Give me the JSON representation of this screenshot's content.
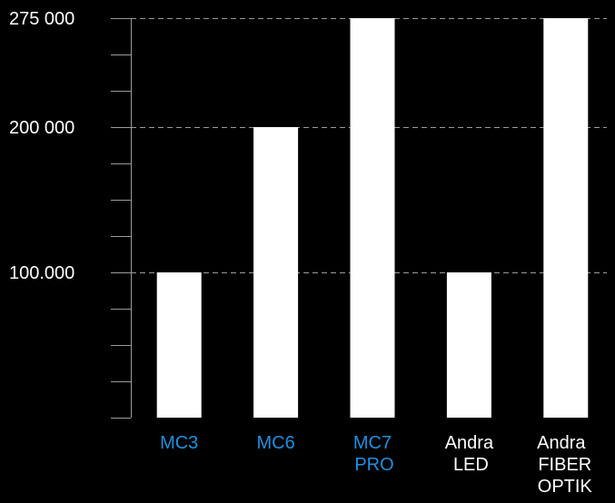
{
  "chart_data": {
    "type": "bar",
    "categories": [
      {
        "lines": [
          "MC3"
        ],
        "color": "#1e90e0"
      },
      {
        "lines": [
          "MC6"
        ],
        "color": "#1e90e0"
      },
      {
        "lines": [
          "MC7",
          "PRO"
        ],
        "color": "#1e90e0"
      },
      {
        "lines": [
          "Andra",
          "LED"
        ],
        "color": "#ffffff"
      },
      {
        "lines": [
          "Andra",
          "FIBER",
          "OPTIK"
        ],
        "color": "#ffffff"
      }
    ],
    "values": [
      100000,
      200000,
      275000,
      100000,
      275000
    ],
    "ylim": [
      0,
      275000
    ],
    "y_tick_labels": [
      {
        "value": 275000,
        "label": "275 000"
      },
      {
        "value": 200000,
        "label": "200 000"
      },
      {
        "value": 100000,
        "label": "100.000"
      }
    ],
    "y_minor_step": 25000,
    "grid": "dashed horizontal at labeled ticks",
    "bar_color": "#ffffff",
    "background": "#000000"
  }
}
